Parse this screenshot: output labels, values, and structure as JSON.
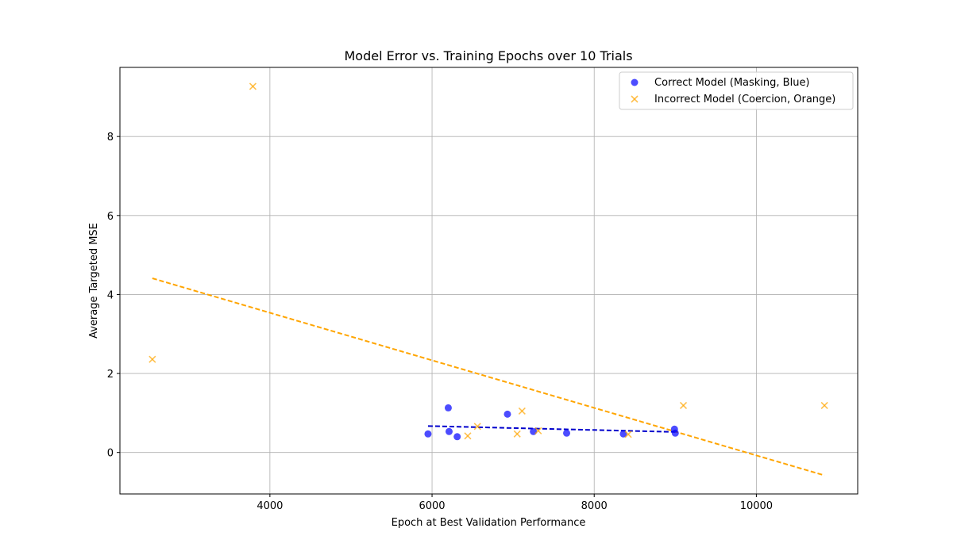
{
  "chart_data": {
    "type": "scatter",
    "title": "Model Error vs. Training Epochs over 10 Trials",
    "xlabel": "Epoch at Best Validation Performance",
    "ylabel": "Average Targeted MSE",
    "xlim": [
      2150,
      11250
    ],
    "ylim": [
      -1.05,
      9.75
    ],
    "xticks": [
      4000,
      6000,
      8000,
      10000
    ],
    "yticks": [
      0,
      2,
      4,
      6,
      8
    ],
    "grid": true,
    "legend_position": "top-right",
    "series": [
      {
        "name": "Correct Model (Masking, Blue)",
        "marker": "circle",
        "color": "#0000ff",
        "points": [
          {
            "x": 5950,
            "y": 0.47
          },
          {
            "x": 6200,
            "y": 1.13
          },
          {
            "x": 6210,
            "y": 0.53
          },
          {
            "x": 6310,
            "y": 0.4
          },
          {
            "x": 6930,
            "y": 0.97
          },
          {
            "x": 7250,
            "y": 0.53
          },
          {
            "x": 7660,
            "y": 0.49
          },
          {
            "x": 8360,
            "y": 0.47
          },
          {
            "x": 8990,
            "y": 0.59
          },
          {
            "x": 9000,
            "y": 0.49
          }
        ],
        "trend": {
          "x": [
            5950,
            9000
          ],
          "y": [
            0.67,
            0.52
          ]
        }
      },
      {
        "name": "Incorrect Model (Coercion, Orange)",
        "marker": "x",
        "color": "#ffa500",
        "points": [
          {
            "x": 2550,
            "y": 2.36
          },
          {
            "x": 3790,
            "y": 9.27
          },
          {
            "x": 6440,
            "y": 0.42
          },
          {
            "x": 6560,
            "y": 0.66
          },
          {
            "x": 7050,
            "y": 0.47
          },
          {
            "x": 7110,
            "y": 1.05
          },
          {
            "x": 7310,
            "y": 0.55
          },
          {
            "x": 8420,
            "y": 0.46
          },
          {
            "x": 9100,
            "y": 1.19
          },
          {
            "x": 10840,
            "y": 1.19
          }
        ],
        "trend": {
          "x": [
            2550,
            10840
          ],
          "y": [
            4.41,
            -0.58
          ]
        }
      }
    ]
  }
}
